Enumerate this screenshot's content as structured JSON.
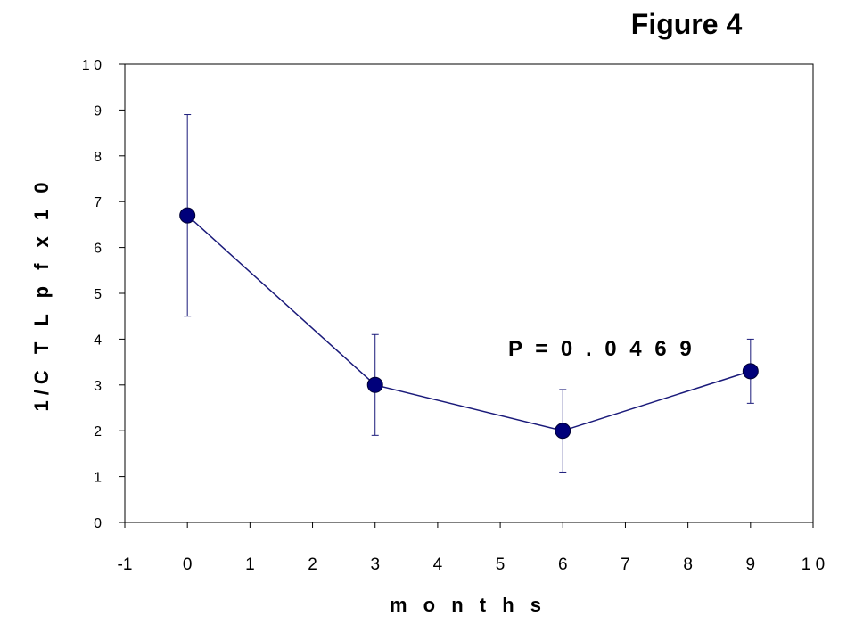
{
  "chart_data": {
    "type": "line",
    "title": "Figure 4",
    "xlabel": "m o n t h s",
    "ylabel": "1/C T L p f  x  1 0",
    "xlim": [
      -1,
      10
    ],
    "ylim": [
      0,
      10
    ],
    "x_ticks": [
      "-1",
      "0",
      "1",
      "2",
      "3",
      "4",
      "5",
      "6",
      "7",
      "8",
      "9",
      "1 0"
    ],
    "y_ticks": [
      "0",
      "1",
      "2",
      "3",
      "4",
      "5",
      "6",
      "7",
      "8",
      "9",
      "1 0"
    ],
    "grid": false,
    "annotation": "P = 0 . 0 4 6 9",
    "colors": {
      "series": "#00007a",
      "line": "#1a1a7a",
      "errorbar": "#1a1a7a"
    },
    "series": [
      {
        "x": [
          0,
          3,
          6,
          9
        ],
        "y": [
          6.7,
          3.0,
          2.0,
          3.3
        ],
        "error_low": [
          4.5,
          1.9,
          1.1,
          2.6
        ],
        "error_high": [
          8.9,
          4.1,
          2.9,
          4.0
        ]
      }
    ]
  }
}
